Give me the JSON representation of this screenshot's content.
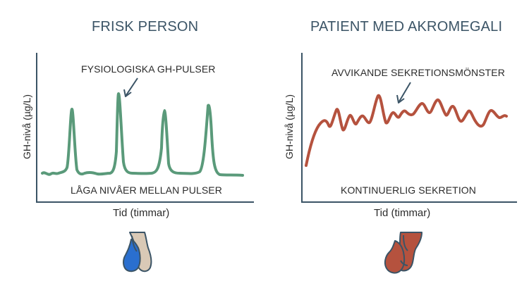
{
  "left_panel": {
    "title": "FRISK PERSON",
    "ylabel": "GH-nivå (µg/L)",
    "xlabel": "Tid (timmar)",
    "annotation": "FYSIOLOGISKA GH-PULSER",
    "caption": "LÅGA NIVÅER MELLAN PULSER",
    "line_color": "#5a9a7a"
  },
  "right_panel": {
    "title": "PATIENT MED AKROMEGALI",
    "ylabel": "GH-nivå (µg/L)",
    "xlabel": "Tid (timmar)",
    "annotation": "AVVIKANDE SEKRETIONSMÖNSTER",
    "caption": "KONTINUERLIG SEKRETION",
    "line_color": "#b5523e"
  },
  "colors": {
    "title": "#3b5466",
    "axis": "#3b5466",
    "pituitary_blue": "#2a6fcf",
    "pituitary_beige": "#d9c9b6",
    "pituitary_red": "#b5523e",
    "pituitary_outline": "#3b5466"
  },
  "icons": [
    "pituitary-gland-normal-icon",
    "pituitary-gland-enlarged-icon"
  ]
}
